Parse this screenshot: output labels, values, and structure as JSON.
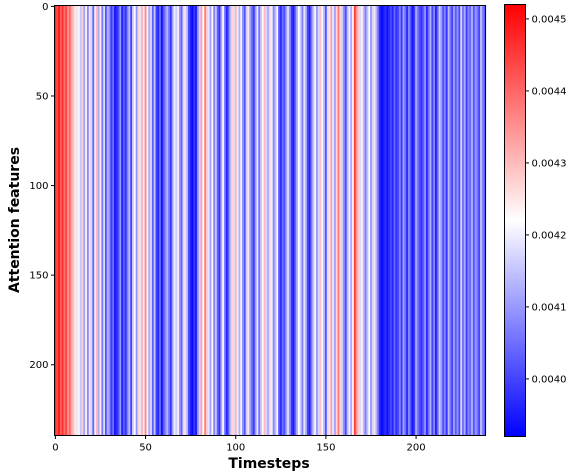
{
  "chart_data": {
    "type": "heatmap",
    "title": "",
    "xlabel": "Timesteps",
    "ylabel": "Attention features",
    "x_ticks": [
      0,
      50,
      100,
      150,
      200
    ],
    "y_ticks": [
      0,
      50,
      100,
      150,
      200
    ],
    "xlim": [
      0,
      239
    ],
    "ylim": [
      240,
      0
    ],
    "n_timesteps": 239,
    "n_features": 240,
    "colormap": "bwr",
    "color_min": 0.00392,
    "color_max": 0.00452,
    "colorbar_ticks": [
      0.004,
      0.0041,
      0.0042,
      0.0043,
      0.0044,
      0.0045
    ],
    "colorbar_tick_labels": [
      "0.0040",
      "0.0041",
      "0.0042",
      "0.0043",
      "0.0044",
      "0.0045"
    ],
    "note_rows": "Each timestep column has one value that is constant across all attention features.",
    "column_values": [
      0.00447,
      0.00443,
      0.00449,
      0.00441,
      0.00446,
      0.00439,
      0.00444,
      0.00435,
      0.0044,
      0.00432,
      0.00429,
      0.00425,
      0.00419,
      0.00423,
      0.00415,
      0.00428,
      0.00411,
      0.00421,
      0.00408,
      0.00426,
      0.00417,
      0.00404,
      0.0042,
      0.0043,
      0.00412,
      0.00424,
      0.00406,
      0.00418,
      0.00402,
      0.00413,
      0.00409,
      0.00399,
      0.00405,
      0.00395,
      0.00397,
      0.00401,
      0.0041,
      0.00396,
      0.00403,
      0.00398,
      0.00407,
      0.00414,
      0.004,
      0.00416,
      0.00422,
      0.00409,
      0.00427,
      0.00419,
      0.00431,
      0.00425,
      0.00436,
      0.00421,
      0.00412,
      0.00418,
      0.00403,
      0.00415,
      0.004,
      0.00397,
      0.00405,
      0.00394,
      0.00402,
      0.00408,
      0.00413,
      0.00406,
      0.00398,
      0.00411,
      0.0042,
      0.00416,
      0.00424,
      0.0041,
      0.00404,
      0.00418,
      0.00426,
      0.00414,
      0.00401,
      0.00396,
      0.00393,
      0.00399,
      0.00395,
      0.00409,
      0.00417,
      0.00433,
      0.00422,
      0.00437,
      0.00428,
      0.00419,
      0.00411,
      0.00423,
      0.00408,
      0.00415,
      0.00404,
      0.00398,
      0.00412,
      0.00421,
      0.00407,
      0.00396,
      0.00403,
      0.00414,
      0.00427,
      0.00418,
      0.00431,
      0.00424,
      0.00413,
      0.0042,
      0.00409,
      0.00402,
      0.00416,
      0.00425,
      0.00411,
      0.00405,
      0.00399,
      0.0041,
      0.00419,
      0.00406,
      0.00415,
      0.00423,
      0.0043,
      0.00417,
      0.00412,
      0.00426,
      0.0042,
      0.00408,
      0.00414,
      0.00421,
      0.00403,
      0.00397,
      0.00405,
      0.00401,
      0.00411,
      0.00418,
      0.00409,
      0.00399,
      0.00395,
      0.00404,
      0.00413,
      0.00422,
      0.00416,
      0.00407,
      0.00419,
      0.00412,
      0.004,
      0.00396,
      0.00406,
      0.00415,
      0.00424,
      0.0041,
      0.00417,
      0.00429,
      0.00421,
      0.00413,
      0.00402,
      0.00418,
      0.00425,
      0.00433,
      0.00419,
      0.00411,
      0.00427,
      0.00438,
      0.00426,
      0.00416,
      0.00409,
      0.00401,
      0.00414,
      0.0042,
      0.00412,
      0.00423,
      0.00445,
      0.00435,
      0.00428,
      0.00418,
      0.00424,
      0.00414,
      0.00407,
      0.00415,
      0.00421,
      0.0041,
      0.00417,
      0.00425,
      0.00413,
      0.00405,
      0.00396,
      0.00393,
      0.00395,
      0.00398,
      0.00394,
      0.00397,
      0.00401,
      0.00396,
      0.00404,
      0.00398,
      0.004,
      0.00407,
      0.00399,
      0.00411,
      0.00405,
      0.00397,
      0.00408,
      0.00402,
      0.00394,
      0.00399,
      0.00412,
      0.00406,
      0.00401,
      0.00398,
      0.00403,
      0.00409,
      0.00397,
      0.00405,
      0.00413,
      0.004,
      0.00408,
      0.00396,
      0.00404,
      0.00416,
      0.0041,
      0.00402,
      0.00407,
      0.00398,
      0.00414,
      0.00406,
      0.004,
      0.00411,
      0.00403,
      0.00409,
      0.00401,
      0.00417,
      0.00405,
      0.00412,
      0.00399,
      0.00408,
      0.00404,
      0.00413,
      0.00402,
      0.0041,
      0.00406,
      0.004,
      0.00415,
      0.00407,
      0.00403
    ]
  }
}
